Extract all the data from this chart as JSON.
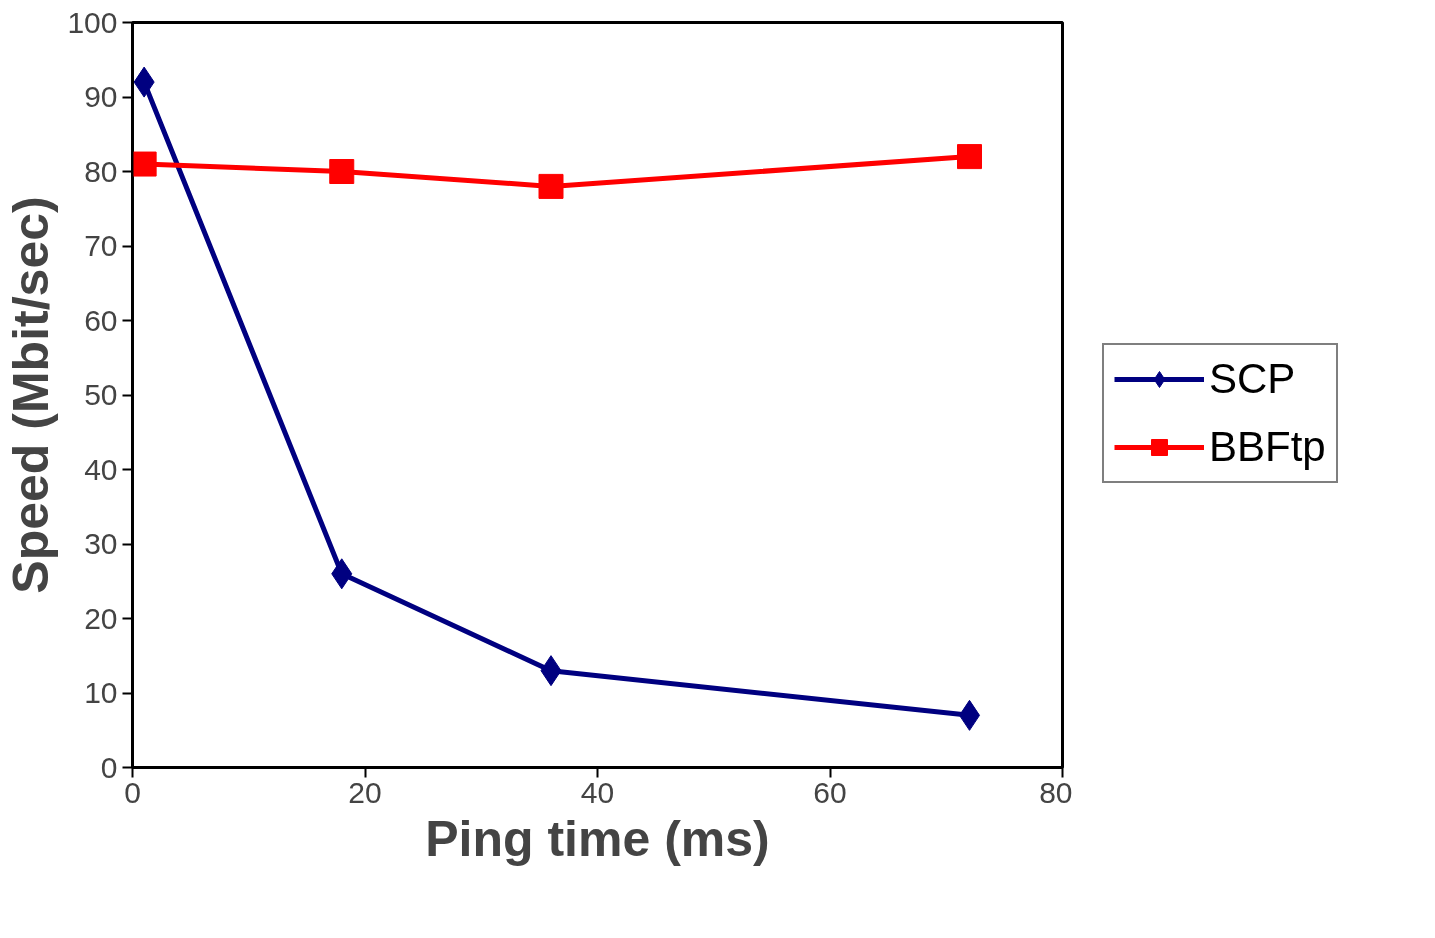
{
  "chart_data": {
    "type": "line",
    "xlabel": "Ping time (ms)",
    "ylabel": "Speed (Mbit/sec)",
    "x": [
      1,
      18,
      36,
      72
    ],
    "series": [
      {
        "name": "SCP",
        "color": "#000080",
        "values": [
          92,
          26,
          13,
          7
        ],
        "marker": "diamond"
      },
      {
        "name": "BBFtp",
        "color": "#ff0000",
        "values": [
          81,
          80,
          78,
          82
        ],
        "marker": "square"
      }
    ],
    "xlim": [
      0,
      80
    ],
    "xticks": [
      0,
      20,
      40,
      60,
      80
    ],
    "ylim": [
      0,
      100
    ],
    "yticks": [
      0,
      10,
      20,
      30,
      40,
      50,
      60,
      70,
      80,
      90,
      100
    ],
    "grid": false,
    "legend": "right",
    "line_style": "solid"
  }
}
